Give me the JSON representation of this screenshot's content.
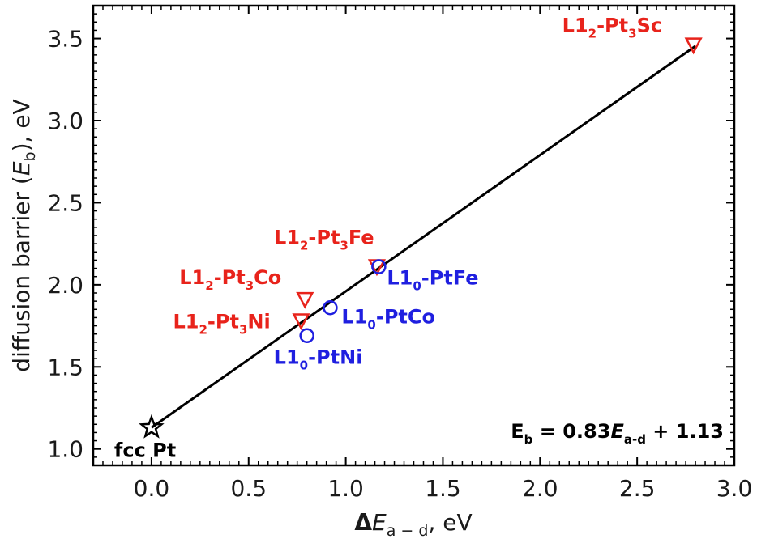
{
  "chart_data": {
    "type": "scatter",
    "xlabel": {
      "prefix": "Δ",
      "var": "E",
      "sub": "a − d",
      "suffix": ", eV"
    },
    "ylabel": {
      "prefix": "diffusion barrier (",
      "var": "E",
      "sub": "b",
      "suffix": "), eV"
    },
    "xlim": [
      -0.3,
      3.0
    ],
    "ylim": [
      0.9,
      3.7
    ],
    "xticks": [
      "0.0",
      "0.5",
      "1.0",
      "1.5",
      "2.0",
      "2.5",
      "3.0"
    ],
    "yticks": [
      "1.0",
      "1.5",
      "2.0",
      "2.5",
      "3.0",
      "3.5"
    ],
    "grid": false,
    "fit_line": {
      "slope": 0.83,
      "intercept": 1.13,
      "x_range": [
        0.0,
        2.8
      ],
      "color": "#000000"
    },
    "equation": {
      "lhs_main": "E",
      "lhs_sub": "b",
      "mid": " = 0.83",
      "var": "E",
      "var_sub": "a-d",
      "rhs": " + 1.13"
    },
    "series": [
      {
        "marker": "star",
        "color": "#000000",
        "points": [
          {
            "x": 0.0,
            "y": 1.13,
            "label": {
              "pre": "fcc Pt"
            }
          }
        ]
      },
      {
        "marker": "triangle-down",
        "color": "#e8231b",
        "points": [
          {
            "x": 0.77,
            "y": 1.78,
            "label": {
              "pre": "L1",
              "sub1": "2",
              "mid": "-Pt",
              "sub2": "3",
              "post": "Ni"
            }
          },
          {
            "x": 0.79,
            "y": 1.91,
            "label": {
              "pre": "L1",
              "sub1": "2",
              "mid": "-Pt",
              "sub2": "3",
              "post": "Co"
            }
          },
          {
            "x": 1.16,
            "y": 2.11,
            "label": {
              "pre": "L1",
              "sub1": "2",
              "mid": "-Pt",
              "sub2": "3",
              "post": "Fe"
            }
          },
          {
            "x": 2.79,
            "y": 3.46,
            "label": {
              "pre": "L1",
              "sub1": "2",
              "mid": "-Pt",
              "sub2": "3",
              "post": "Sc"
            }
          }
        ]
      },
      {
        "marker": "circle",
        "color": "#1f1fe0",
        "points": [
          {
            "x": 0.8,
            "y": 1.69,
            "label": {
              "pre": "L1",
              "sub1": "0",
              "mid": "-PtNi"
            }
          },
          {
            "x": 0.92,
            "y": 1.86,
            "label": {
              "pre": "L1",
              "sub1": "0",
              "mid": "-PtCo"
            }
          },
          {
            "x": 1.17,
            "y": 2.11,
            "label": {
              "pre": "L1",
              "sub1": "0",
              "mid": "-PtFe"
            }
          }
        ]
      }
    ]
  }
}
